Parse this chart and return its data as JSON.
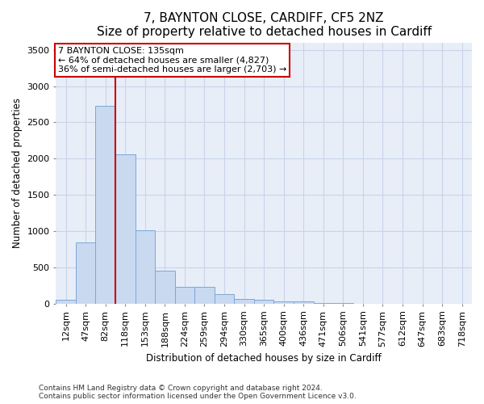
{
  "title": "7, BAYNTON CLOSE, CARDIFF, CF5 2NZ",
  "subtitle": "Size of property relative to detached houses in Cardiff",
  "xlabel": "Distribution of detached houses by size in Cardiff",
  "ylabel": "Number of detached properties",
  "footnote1": "Contains HM Land Registry data © Crown copyright and database right 2024.",
  "footnote2": "Contains public sector information licensed under the Open Government Licence v3.0.",
  "categories": [
    "12sqm",
    "47sqm",
    "82sqm",
    "118sqm",
    "153sqm",
    "188sqm",
    "224sqm",
    "259sqm",
    "294sqm",
    "330sqm",
    "365sqm",
    "400sqm",
    "436sqm",
    "471sqm",
    "506sqm",
    "541sqm",
    "577sqm",
    "612sqm",
    "647sqm",
    "683sqm",
    "718sqm"
  ],
  "values": [
    55,
    850,
    2730,
    2060,
    1010,
    455,
    230,
    230,
    135,
    65,
    60,
    30,
    30,
    10,
    5,
    0,
    0,
    0,
    0,
    0,
    0
  ],
  "bar_color": "#c9d9f0",
  "bar_edge_color": "#7aa8d8",
  "grid_color": "#c8d4e8",
  "background_color": "#e8eef8",
  "annotation_line1": "7 BAYNTON CLOSE: 135sqm",
  "annotation_line2": "← 64% of detached houses are smaller (4,827)",
  "annotation_line3": "36% of semi-detached houses are larger (2,703) →",
  "vline_x": 2.5,
  "vline_color": "#cc0000",
  "ylim": [
    0,
    3600
  ],
  "yticks": [
    0,
    500,
    1000,
    1500,
    2000,
    2500,
    3000,
    3500
  ],
  "title_fontsize": 11,
  "subtitle_fontsize": 9,
  "axis_label_fontsize": 8.5,
  "tick_fontsize": 8,
  "footnote_fontsize": 6.5,
  "annot_fontsize": 8
}
